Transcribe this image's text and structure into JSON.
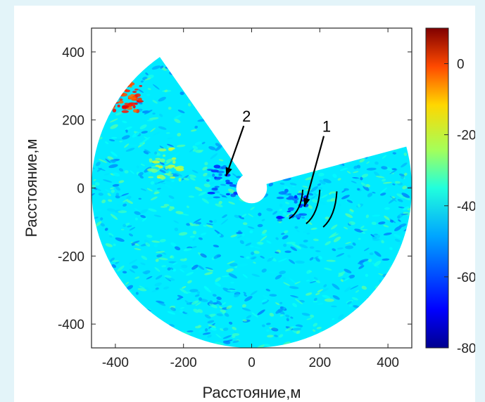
{
  "chart_data": {
    "type": "heatmap",
    "subtype": "sector-scan radar intensity map",
    "xlabel": "Расстояние,м",
    "ylabel": "Расстояние,м",
    "xlim": [
      -470,
      470
    ],
    "ylim": [
      -470,
      470
    ],
    "xticks": [
      -400,
      -200,
      0,
      200,
      400
    ],
    "yticks": [
      400,
      200,
      0,
      -200,
      -400
    ],
    "xtick_labels": [
      "-400",
      "-200",
      "0",
      "200",
      "400"
    ],
    "ytick_labels": [
      "400",
      "200",
      "0",
      "-200",
      "-400"
    ],
    "scan": {
      "inner_radius": 45,
      "outer_radius": 470,
      "start_angle_deg": 15,
      "end_angle_deg": 125,
      "sweep": "clockwise through the bottom (missing wedge toward the top)"
    },
    "colorbar": {
      "colormap": "jet",
      "min": -80,
      "max": 10,
      "ticks": [
        0,
        -20,
        -40,
        -60,
        -80
      ],
      "tick_labels": [
        "0",
        "-20",
        "-40",
        "-60",
        "-80"
      ]
    },
    "typical_level": -48,
    "features": [
      {
        "note": "strong return (red/orange) at upper-left edge",
        "x": -370,
        "y": 270,
        "level": -5
      },
      {
        "note": "yellow streaks",
        "x": -250,
        "y": 70,
        "level": -32
      },
      {
        "note": "darker (low) region near label 2",
        "x": -80,
        "y": 20,
        "level": -62
      },
      {
        "note": "darker (low) region near label 1",
        "x": 120,
        "y": -55,
        "level": -62
      }
    ],
    "annotations": [
      {
        "label": "1",
        "text_x": 220,
        "text_y": 165,
        "arrow_to": [
          155,
          -55
        ]
      },
      {
        "label": "2",
        "text_x": -15,
        "text_y": 195,
        "arrow_to": [
          -75,
          35
        ]
      }
    ],
    "grid": false,
    "legend": "none"
  }
}
